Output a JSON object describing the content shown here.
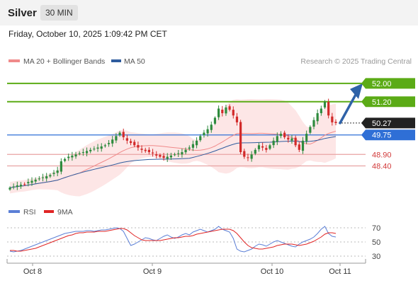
{
  "header": {
    "instrument": "Silver",
    "timeframe": "30 MIN"
  },
  "datetime": "Friday, October 10, 2025 1:09:42 PM CET",
  "legend": [
    {
      "label": "MA 20 + Bollinger Bands",
      "color": "#f08a8a"
    },
    {
      "label": "MA 50",
      "color": "#2f5c9e"
    }
  ],
  "credit": "Research © 2025 Trading Central",
  "rsi_legend": [
    {
      "label": "RSI",
      "color": "#5b7fd6"
    },
    {
      "label": "9MA",
      "color": "#e02424"
    }
  ],
  "colors": {
    "target": "#5bab16",
    "support": "#e8a3a3",
    "pivot": "#2f6fd6",
    "price": "#222222",
    "up": "#2e8b3e",
    "down": "#d22a2a",
    "arrow": "#2f62a8"
  },
  "chart_data": [
    {
      "type": "candlestick",
      "ylim": [
        47.15,
        52.55
      ],
      "x_ticks": [
        "Oct 8",
        "Oct 9",
        "Oct 10",
        "Oct 11"
      ],
      "levels": [
        {
          "value": 52.0,
          "label": "52.00",
          "kind": "target"
        },
        {
          "value": 51.2,
          "label": "51.20",
          "kind": "target"
        },
        {
          "value": 50.27,
          "label": "50.27",
          "kind": "price"
        },
        {
          "value": 49.75,
          "label": "49.75",
          "kind": "pivot"
        },
        {
          "value": 48.9,
          "label": "48.90",
          "kind": "support"
        },
        {
          "value": 48.4,
          "label": "48.40",
          "kind": "support"
        }
      ],
      "close": [
        47.45,
        47.5,
        47.55,
        47.58,
        47.6,
        47.7,
        47.75,
        47.8,
        47.85,
        47.9,
        47.95,
        48.0,
        48.1,
        48.2,
        48.6,
        48.7,
        48.8,
        48.85,
        48.9,
        48.95,
        49.0,
        49.05,
        49.1,
        49.15,
        49.2,
        49.25,
        49.3,
        49.4,
        49.55,
        49.7,
        49.85,
        49.65,
        49.5,
        49.4,
        49.3,
        49.2,
        49.1,
        49.05,
        49.0,
        48.95,
        48.85,
        48.8,
        48.75,
        48.8,
        48.85,
        48.9,
        48.95,
        49.0,
        49.1,
        49.2,
        49.35,
        49.5,
        49.7,
        49.85,
        50.0,
        50.2,
        50.5,
        50.9,
        50.7,
        50.95,
        50.85,
        50.6,
        50.3,
        49.0,
        48.8,
        48.75,
        48.9,
        49.1,
        49.3,
        49.2,
        49.1,
        49.3,
        49.5,
        49.7,
        49.8,
        49.65,
        49.55,
        49.6,
        49.3,
        49.1,
        49.5,
        49.8,
        50.1,
        50.4,
        50.7,
        50.9,
        51.2,
        50.6,
        50.3,
        50.27
      ]
    },
    {
      "type": "line",
      "ylim": [
        20,
        82
      ],
      "y_ticks": [
        70,
        50,
        30
      ],
      "series": [
        {
          "name": "RSI",
          "values": [
            37,
            36,
            37,
            38,
            40,
            42,
            44,
            46,
            48,
            50,
            52,
            54,
            56,
            58,
            60,
            62,
            63,
            64,
            65,
            65,
            65,
            66,
            66,
            65,
            66,
            67,
            67,
            68,
            69,
            70,
            69,
            65,
            55,
            45,
            47,
            50,
            53,
            56,
            55,
            53,
            52,
            55,
            58,
            60,
            57,
            55,
            57,
            60,
            62,
            60,
            64,
            66,
            68,
            66,
            64,
            66,
            68,
            72,
            68,
            66,
            64,
            55,
            40,
            37,
            36,
            38,
            40,
            44,
            47,
            46,
            44,
            47,
            50,
            52,
            50,
            48,
            46,
            44,
            43,
            47,
            50,
            52,
            54,
            57,
            62,
            68,
            72,
            62,
            58,
            57
          ]
        },
        {
          "name": "9MA",
          "values": [
            38,
            38,
            37,
            37,
            38,
            39,
            40,
            41,
            43,
            45,
            47,
            49,
            51,
            53,
            55,
            57,
            59,
            60,
            62,
            63,
            63,
            64,
            64,
            64,
            65,
            65,
            65,
            66,
            67,
            68,
            69,
            69,
            67,
            63,
            59,
            56,
            53,
            52,
            52,
            52,
            52,
            52,
            53,
            54,
            55,
            56,
            56,
            57,
            58,
            58,
            59,
            61,
            62,
            63,
            64,
            65,
            66,
            67,
            68,
            68,
            68,
            66,
            62,
            56,
            50,
            45,
            42,
            41,
            40,
            40,
            41,
            42,
            43,
            45,
            46,
            47,
            47,
            47,
            46,
            45,
            46,
            47,
            49,
            51,
            54,
            57,
            61,
            63,
            63,
            62
          ]
        }
      ]
    }
  ]
}
